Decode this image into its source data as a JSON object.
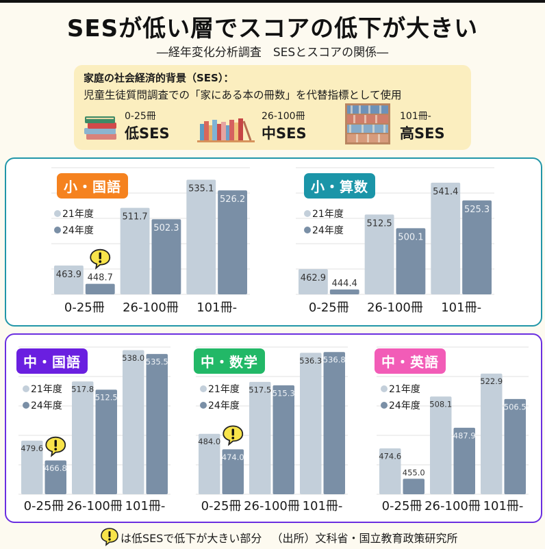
{
  "header": {
    "title": "SESが低い層でスコアの低下が大きい",
    "subtitle": "―経年変化分析調査　SESとスコアの関係―"
  },
  "ses_info": {
    "heading": "家庭の社会経済的背景（SES）：",
    "description": "児童生徒質問調査での「家にある本の冊数」を代替指標として使用",
    "levels": [
      {
        "range": "0-25冊",
        "label": "低SES",
        "icon": "stacked-books-icon"
      },
      {
        "range": "26-100冊",
        "label": "中SES",
        "icon": "book-row-icon"
      },
      {
        "range": "101冊-",
        "label": "高SES",
        "icon": "bookshelf-icon"
      }
    ]
  },
  "colors": {
    "elementary_border": "#2196a8",
    "junior_border": "#6a2ee0",
    "series_21": "#c3cfda",
    "series_24": "#7a8fa6",
    "warn_bubble": "#f8e44a"
  },
  "legend": {
    "s21": "21年度",
    "s24": "24年度"
  },
  "footer": {
    "note": "は低SESで低下が大きい部分",
    "source": "（出所）文科省・国立教育政策研究所"
  },
  "chart_data": [
    {
      "type": "bar",
      "title": "小・国語",
      "tag_color": "#f5821f",
      "categories": [
        "0-25冊",
        "26-100冊",
        "101冊-"
      ],
      "series": [
        {
          "name": "21年度",
          "values": [
            463.9,
            511.7,
            535.1
          ]
        },
        {
          "name": "24年度",
          "values": [
            448.7,
            502.3,
            526.2
          ]
        }
      ],
      "ylim": [
        440,
        545
      ],
      "grid": true,
      "warning_on": [
        0
      ],
      "legend": "left"
    },
    {
      "type": "bar",
      "title": "小・算数",
      "tag_color": "#1b95a8",
      "categories": [
        "0-25冊",
        "26-100冊",
        "101冊-"
      ],
      "series": [
        {
          "name": "21年度",
          "values": [
            462.9,
            512.5,
            541.4
          ]
        },
        {
          "name": "24年度",
          "values": [
            444.4,
            500.1,
            525.3
          ]
        }
      ],
      "ylim": [
        440,
        555
      ],
      "grid": true,
      "warning_on": [],
      "legend": "left"
    },
    {
      "type": "bar",
      "title": "中・国語",
      "tag_color": "#6a1fe0",
      "categories": [
        "0-25冊",
        "26-100冊",
        "101冊-"
      ],
      "series": [
        {
          "name": "21年度",
          "values": [
            479.6,
            517.8,
            538.0
          ]
        },
        {
          "name": "24年度",
          "values": [
            466.8,
            512.5,
            535.5
          ]
        }
      ],
      "ylim": [
        445,
        540
      ],
      "grid": true,
      "warning_on": [
        0
      ],
      "legend": "left"
    },
    {
      "type": "bar",
      "title": "中・数学",
      "tag_color": "#22b867",
      "categories": [
        "0-25冊",
        "26-100冊",
        "101冊-"
      ],
      "series": [
        {
          "name": "21年度",
          "values": [
            484.0,
            517.5,
            536.3
          ]
        },
        {
          "name": "24年度",
          "values": [
            474.0,
            515.3,
            536.8
          ]
        }
      ],
      "ylim": [
        445,
        540
      ],
      "grid": true,
      "warning_on": [
        0
      ],
      "legend": "left"
    },
    {
      "type": "bar",
      "title": "中・英語",
      "tag_color": "#f25cb7",
      "categories": [
        "0-25冊",
        "26-100冊",
        "101冊-"
      ],
      "series": [
        {
          "name": "21年度",
          "values": [
            474.6,
            508.1,
            522.9
          ]
        },
        {
          "name": "24年度",
          "values": [
            455.0,
            487.9,
            506.5
          ]
        }
      ],
      "ylim": [
        445,
        540
      ],
      "grid": true,
      "warning_on": [],
      "legend": "left"
    }
  ]
}
